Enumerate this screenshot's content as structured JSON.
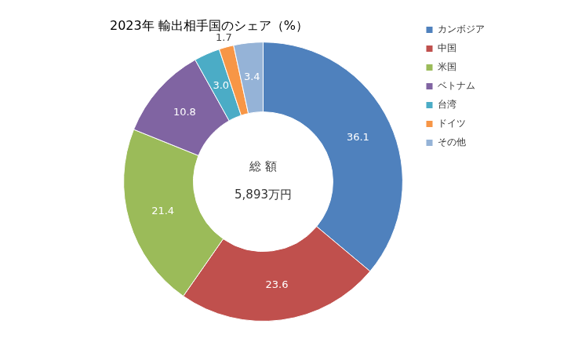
{
  "chart_data": {
    "type": "doughnut",
    "title": "2023年 輸出相手国のシェア（%）",
    "categories": [
      "カンボジア",
      "中国",
      "米国",
      "ベトナム",
      "台湾",
      "ドイツ",
      "その他"
    ],
    "values": [
      36.1,
      23.6,
      21.4,
      10.8,
      3.0,
      1.7,
      3.4
    ],
    "value_labels": [
      "36.1",
      "23.6",
      "21.4",
      "10.8",
      "3.0",
      "1.7",
      "3.4"
    ],
    "colors": [
      "#4F81BD",
      "#C0504D",
      "#9BBB59",
      "#8064A2",
      "#4BACC6",
      "#F79646",
      "#95B3D7"
    ],
    "data_labels": true,
    "legend": "right",
    "annotations": [
      "総 額",
      "5,893万円"
    ]
  }
}
